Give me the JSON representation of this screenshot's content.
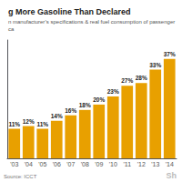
{
  "chart_data": {
    "type": "bar",
    "title": "g More Gasoline Than Declared",
    "subtitle": "n manufacturer’s specifications & real fuel consumption of passenger ca",
    "categories": [
      "'03",
      "'04",
      "'05",
      "'06",
      "'07",
      "'08",
      "'09",
      "'10",
      "'11",
      "'12",
      "'13",
      "'14"
    ],
    "values": [
      11,
      12,
      11,
      14,
      16,
      18,
      20,
      23,
      27,
      28,
      33,
      37
    ],
    "value_labels": [
      "11%",
      "12%",
      "11%",
      "14%",
      "16%",
      "18%",
      "20%",
      "23%",
      "27%",
      "28%",
      "33%",
      "37%"
    ],
    "data_labels": true,
    "color": "#E8A000",
    "ylim": [
      0,
      44
    ],
    "tick_labels": "x",
    "grid": false,
    "annotations": [
      "Source: ICCT",
      "Sh"
    ]
  }
}
